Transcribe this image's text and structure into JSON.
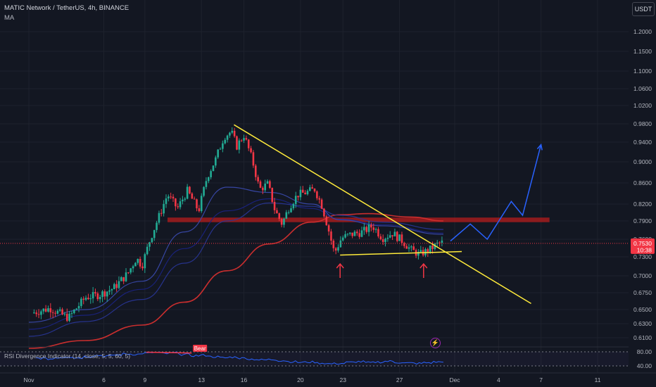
{
  "header": {
    "symbol_line": "MATIC Network / TetherUS, 4h, BINANCE",
    "indicator_label": "MA",
    "currency_button": "USDT"
  },
  "rsi": {
    "label": "RSI Divergence Indicator (14, close, 5, 5, 60, 5)",
    "upper_level": "80.00",
    "lower_level": "40.00",
    "bear_tag": "Bear"
  },
  "price_badge": {
    "price": "0.7530",
    "countdown": "10:38"
  },
  "colors": {
    "background": "#131722",
    "up_candle": "#22ab94",
    "down_candle": "#f23645",
    "trendline": "#ffeb3b",
    "projection": "#2962ff",
    "ma_red": "#d32f2f",
    "ma_navy": "#1a237e",
    "rsi_line": "#2962ff",
    "arrow": "#f23645"
  },
  "chart_data": {
    "type": "candlestick",
    "symbol": "MATIC/USDT",
    "timeframe": "4h",
    "y_axis_ticks": [
      "1.2000",
      "1.1500",
      "1.1000",
      "1.0600",
      "1.0200",
      "0.9800",
      "0.9400",
      "0.9000",
      "0.8600",
      "0.8200",
      "0.7900",
      "0.7600",
      "0.7300",
      "0.7000",
      "0.6750",
      "0.6500",
      "0.6300",
      "0.6100"
    ],
    "x_axis_ticks": [
      "Nov",
      "6",
      "9",
      "13",
      "16",
      "20",
      "23",
      "27",
      "Dec",
      "4",
      "7",
      "11"
    ],
    "price_path": [
      {
        "d": 0.2,
        "p": 0.645
      },
      {
        "d": 1.5,
        "p": 0.652
      },
      {
        "d": 2.8,
        "p": 0.638
      },
      {
        "d": 4.0,
        "p": 0.668
      },
      {
        "d": 5.0,
        "p": 0.672
      },
      {
        "d": 6.0,
        "p": 0.682
      },
      {
        "d": 7.0,
        "p": 0.704
      },
      {
        "d": 7.6,
        "p": 0.728
      },
      {
        "d": 8.0,
        "p": 0.716
      },
      {
        "d": 8.6,
        "p": 0.762
      },
      {
        "d": 9.2,
        "p": 0.798
      },
      {
        "d": 9.8,
        "p": 0.838
      },
      {
        "d": 10.5,
        "p": 0.812
      },
      {
        "d": 11.2,
        "p": 0.845
      },
      {
        "d": 12.0,
        "p": 0.808
      },
      {
        "d": 12.6,
        "p": 0.872
      },
      {
        "d": 13.2,
        "p": 0.905
      },
      {
        "d": 13.8,
        "p": 0.952
      },
      {
        "d": 14.3,
        "p": 0.963
      },
      {
        "d": 14.7,
        "p": 0.932
      },
      {
        "d": 15.2,
        "p": 0.955
      },
      {
        "d": 15.8,
        "p": 0.903
      },
      {
        "d": 16.3,
        "p": 0.848
      },
      {
        "d": 16.9,
        "p": 0.858
      },
      {
        "d": 17.4,
        "p": 0.808
      },
      {
        "d": 17.9,
        "p": 0.785
      },
      {
        "d": 18.4,
        "p": 0.815
      },
      {
        "d": 19.0,
        "p": 0.838
      },
      {
        "d": 19.6,
        "p": 0.842
      },
      {
        "d": 20.2,
        "p": 0.848
      },
      {
        "d": 20.7,
        "p": 0.818
      },
      {
        "d": 21.2,
        "p": 0.774
      },
      {
        "d": 21.6,
        "p": 0.736
      },
      {
        "d": 22.1,
        "p": 0.762
      },
      {
        "d": 22.8,
        "p": 0.768
      },
      {
        "d": 23.6,
        "p": 0.772
      },
      {
        "d": 24.3,
        "p": 0.782
      },
      {
        "d": 25.0,
        "p": 0.762
      },
      {
        "d": 25.7,
        "p": 0.77
      },
      {
        "d": 26.4,
        "p": 0.757
      },
      {
        "d": 27.0,
        "p": 0.742
      },
      {
        "d": 27.6,
        "p": 0.734
      },
      {
        "d": 28.3,
        "p": 0.742
      },
      {
        "d": 28.9,
        "p": 0.752
      },
      {
        "d": 29.3,
        "p": 0.755
      }
    ],
    "moving_averages": [
      {
        "name": "MA red",
        "color": "#d32f2f",
        "points": [
          [
            0,
            0.595
          ],
          [
            4,
            0.606
          ],
          [
            8,
            0.628
          ],
          [
            11,
            0.661
          ],
          [
            14,
            0.708
          ],
          [
            17,
            0.752
          ],
          [
            20,
            0.788
          ],
          [
            22,
            0.801
          ],
          [
            24,
            0.803
          ],
          [
            27,
            0.797
          ],
          [
            29.3,
            0.79
          ]
        ]
      },
      {
        "name": "MA navy 1",
        "color": "#1a237e",
        "points": [
          [
            0,
            0.622
          ],
          [
            4,
            0.642
          ],
          [
            8,
            0.68
          ],
          [
            11,
            0.744
          ],
          [
            14,
            0.808
          ],
          [
            17,
            0.83
          ],
          [
            20,
            0.812
          ],
          [
            22,
            0.793
          ],
          [
            25,
            0.784
          ],
          [
            29.3,
            0.77
          ]
        ]
      },
      {
        "name": "MA navy 2",
        "color": "#283593",
        "points": [
          [
            0,
            0.612
          ],
          [
            4,
            0.633
          ],
          [
            8,
            0.665
          ],
          [
            11,
            0.72
          ],
          [
            14,
            0.79
          ],
          [
            17,
            0.822
          ],
          [
            20,
            0.816
          ],
          [
            22,
            0.8
          ],
          [
            25,
            0.788
          ],
          [
            29.3,
            0.776
          ]
        ]
      },
      {
        "name": "MA blue",
        "color": "#3949ab",
        "points": [
          [
            0,
            0.632
          ],
          [
            4,
            0.65
          ],
          [
            8,
            0.692
          ],
          [
            11,
            0.772
          ],
          [
            14,
            0.852
          ],
          [
            17,
            0.842
          ],
          [
            20,
            0.82
          ],
          [
            22,
            0.792
          ],
          [
            25,
            0.782
          ],
          [
            29.3,
            0.768
          ]
        ]
      }
    ],
    "resistance_zone": {
      "from_day": 9.8,
      "to_day": 36.8,
      "low": 0.788,
      "high": 0.796
    },
    "descending_trendline": [
      [
        14.5,
        0.978
      ],
      [
        35.5,
        0.659
      ]
    ],
    "support_line": [
      [
        22.0,
        0.733
      ],
      [
        30.6,
        0.739
      ]
    ],
    "projection_path": [
      [
        29.8,
        0.757
      ],
      [
        31.2,
        0.785
      ],
      [
        32.4,
        0.76
      ],
      [
        34.1,
        0.825
      ],
      [
        34.9,
        0.8
      ],
      [
        36.2,
        0.935
      ]
    ],
    "arrow_days": [
      22.0,
      27.9
    ],
    "rsi_series": [
      62,
      60,
      64,
      66,
      63,
      67,
      70,
      68,
      71,
      74,
      73,
      76,
      78,
      75,
      77,
      72,
      69,
      70,
      66,
      63,
      65,
      62,
      59,
      57,
      58,
      55,
      52,
      50,
      51,
      48,
      46,
      47,
      50,
      52,
      49,
      51,
      53,
      50,
      48,
      47,
      49,
      51,
      53
    ]
  }
}
